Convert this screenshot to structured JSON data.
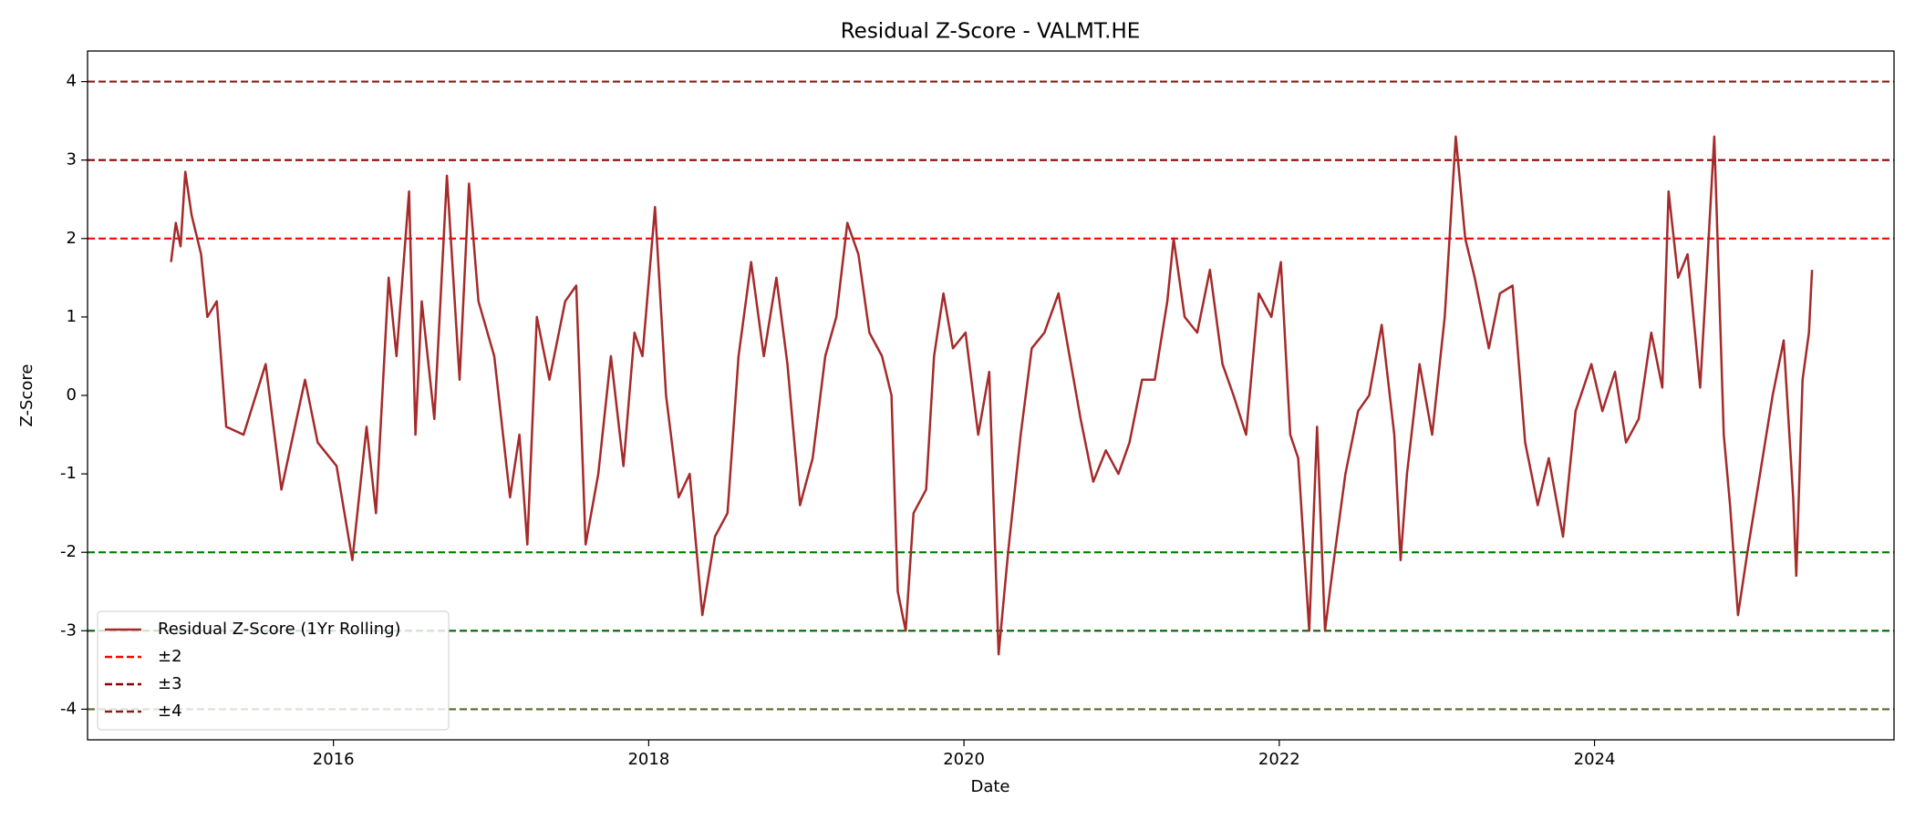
{
  "chart_data": {
    "type": "line",
    "title": "Residual Z-Score - VALMT.HE",
    "x_label": "Date",
    "y_label": "Z-Score",
    "xlim": [
      2014.44,
      2025.9
    ],
    "ylim": [
      -4.39,
      4.39
    ],
    "xticks": [
      2016,
      2018,
      2020,
      2022,
      2024
    ],
    "yticks": [
      -4,
      -3,
      -2,
      -1,
      0,
      1,
      2,
      3,
      4
    ],
    "grid": false,
    "legend": "lower left",
    "x": [
      2014.97,
      2015.0,
      2015.03,
      2015.06,
      2015.1,
      2015.16,
      2015.2,
      2015.26,
      2015.32,
      2015.43,
      2015.57,
      2015.67,
      2015.82,
      2015.9,
      2016.02,
      2016.12,
      2016.21,
      2016.27,
      2016.35,
      2016.4,
      2016.48,
      2016.52,
      2016.56,
      2016.64,
      2016.72,
      2016.8,
      2016.86,
      2016.92,
      2017.02,
      2017.12,
      2017.18,
      2017.23,
      2017.29,
      2017.37,
      2017.47,
      2017.54,
      2017.6,
      2017.68,
      2017.76,
      2017.84,
      2017.91,
      2017.96,
      2018.04,
      2018.11,
      2018.19,
      2018.26,
      2018.34,
      2018.42,
      2018.5,
      2018.57,
      2018.65,
      2018.73,
      2018.81,
      2018.88,
      2018.96,
      2019.04,
      2019.12,
      2019.19,
      2019.26,
      2019.33,
      2019.4,
      2019.48,
      2019.54,
      2019.58,
      2019.63,
      2019.68,
      2019.76,
      2019.81,
      2019.87,
      2019.93,
      2020.01,
      2020.09,
      2020.16,
      2020.22,
      2020.28,
      2020.36,
      2020.43,
      2020.51,
      2020.6,
      2020.67,
      2020.74,
      2020.82,
      2020.9,
      2020.98,
      2021.05,
      2021.13,
      2021.21,
      2021.29,
      2021.33,
      2021.4,
      2021.48,
      2021.56,
      2021.64,
      2021.71,
      2021.79,
      2021.87,
      2021.95,
      2022.01,
      2022.07,
      2022.12,
      2022.19,
      2022.24,
      2022.29,
      2022.34,
      2022.42,
      2022.5,
      2022.57,
      2022.65,
      2022.73,
      2022.77,
      2022.81,
      2022.89,
      2022.97,
      2023.05,
      2023.12,
      2023.18,
      2023.24,
      2023.33,
      2023.4,
      2023.48,
      2023.56,
      2023.64,
      2023.71,
      2023.8,
      2023.88,
      2023.98,
      2024.05,
      2024.13,
      2024.2,
      2024.28,
      2024.36,
      2024.43,
      2024.47,
      2024.53,
      2024.59,
      2024.67,
      2024.71,
      2024.76,
      2024.82,
      2024.86,
      2024.91,
      2024.97,
      2025.05,
      2025.13,
      2025.2,
      2025.26,
      2025.28,
      2025.32,
      2025.36,
      2025.38
    ],
    "series": [
      {
        "name": "Residual Z-Score (1Yr Rolling)",
        "color": "#a52a2a",
        "values": [
          1.7,
          2.2,
          1.9,
          2.85,
          2.3,
          1.8,
          1.0,
          1.2,
          -0.4,
          -0.5,
          0.4,
          -1.2,
          0.2,
          -0.6,
          -0.9,
          -2.1,
          -0.4,
          -1.5,
          1.5,
          0.5,
          2.6,
          -0.5,
          1.2,
          -0.3,
          2.8,
          0.2,
          2.7,
          1.2,
          0.5,
          -1.3,
          -0.5,
          -1.9,
          1.0,
          0.2,
          1.2,
          1.4,
          -1.9,
          -1.0,
          0.5,
          -0.9,
          0.8,
          0.5,
          2.4,
          0.0,
          -1.3,
          -1.0,
          -2.8,
          -1.8,
          -1.5,
          0.5,
          1.7,
          0.5,
          1.5,
          0.4,
          -1.4,
          -0.8,
          0.5,
          1.0,
          2.2,
          1.8,
          0.8,
          0.5,
          0.0,
          -2.5,
          -3.0,
          -1.5,
          -1.2,
          0.5,
          1.3,
          0.6,
          0.8,
          -0.5,
          0.3,
          -3.3,
          -2.0,
          -0.5,
          0.6,
          0.8,
          1.3,
          0.5,
          -0.3,
          -1.1,
          -0.7,
          -1.0,
          -0.6,
          0.2,
          0.2,
          1.2,
          2.0,
          1.0,
          0.8,
          1.6,
          0.4,
          0.0,
          -0.5,
          1.3,
          1.0,
          1.7,
          -0.5,
          -0.8,
          -3.0,
          -0.4,
          -3.0,
          -2.2,
          -1.0,
          -0.2,
          0.0,
          0.9,
          -0.5,
          -2.1,
          -1.0,
          0.4,
          -0.5,
          1.0,
          3.3,
          2.0,
          1.5,
          0.6,
          1.3,
          1.4,
          -0.6,
          -1.4,
          -0.8,
          -1.8,
          -0.2,
          0.4,
          -0.2,
          0.3,
          -0.6,
          -0.3,
          0.8,
          0.1,
          2.6,
          1.5,
          1.8,
          0.1,
          1.5,
          3.3,
          -0.5,
          -1.4,
          -2.8,
          -2.0,
          -1.0,
          0.0,
          0.7,
          -1.3,
          -2.3,
          0.2,
          0.8,
          1.6
        ]
      }
    ],
    "reference_lines": [
      {
        "name": "±2",
        "values": [
          2,
          -2
        ],
        "colors": [
          "#ff0000",
          "#008000"
        ]
      },
      {
        "name": "±3",
        "values": [
          3,
          -3
        ],
        "colors": [
          "#8b0000",
          "#006400"
        ]
      },
      {
        "name": "±4",
        "values": [
          4,
          -4
        ],
        "colors": [
          "#8b1a1a",
          "#556b2f"
        ]
      }
    ]
  }
}
